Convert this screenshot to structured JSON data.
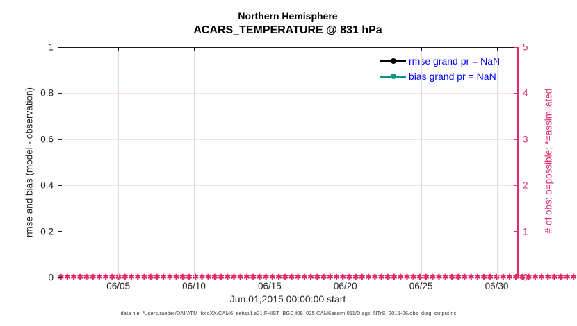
{
  "figure": {
    "title_line1": "Northern Hemisphere",
    "title_line2": "ACARS_TEMPERATURE @ 831 hPa",
    "footer": "data file: /Users/raeder/DAI/ATM_forcXX/CAM6_setup/f.e21.FHIST_BGC.f09_025.CAM6assim.011/Diags_NTrS_2015-06/obs_diag_output.nc"
  },
  "axes": {
    "left": {
      "label": "rmse and bias (model - observation)",
      "ticks": [
        "0",
        "0.2",
        "0.4",
        "0.6",
        "0.8",
        "1"
      ],
      "range": [
        0,
        1
      ]
    },
    "right": {
      "label": "# of obs: o=possible; *=assimilated",
      "ticks": [
        "0",
        "1",
        "2",
        "3",
        "4",
        "5"
      ],
      "range": [
        0,
        5
      ]
    },
    "x": {
      "label": "Jun.01,2015 00:00:00 start",
      "ticks": [
        "06/05",
        "06/10",
        "06/15",
        "06/20",
        "06/25",
        "06/30"
      ],
      "tick_days": [
        4,
        9,
        14,
        19,
        24,
        29
      ],
      "span_days": 30.4
    }
  },
  "legend": {
    "entries": [
      {
        "label": "rmse grand pr = NaN",
        "color": "#000000"
      },
      {
        "label": "bias grand pr = NaN",
        "color": "#0f9488"
      }
    ],
    "text_color": "#0000ff"
  },
  "colors": {
    "pink": "#e42a6a",
    "pink_grid": "rgba(228,42,106,0.16)",
    "gray_grid": "#dcdcdc",
    "tick_text": "#262626",
    "spine": "#1a1a1a"
  },
  "chart_data": {
    "type": "line",
    "title": "Northern Hemisphere",
    "subtitle": "ACARS_TEMPERATURE @ 831 hPa",
    "xlabel": "Jun.01,2015 00:00:00 start",
    "x_tick_labels": [
      "06/05",
      "06/10",
      "06/15",
      "06/20",
      "06/25",
      "06/30"
    ],
    "x_start": "Jun.01,2015 00:00:00",
    "left_axis": {
      "label": "rmse and bias (model - observation)",
      "ylim": [
        0,
        1
      ]
    },
    "right_axis": {
      "label": "# of obs: o=possible; *=assimilated",
      "ylim": [
        0,
        5
      ]
    },
    "grid": true,
    "legend_position": "upper-right-inside",
    "series": [
      {
        "name": "rmse grand pr = NaN",
        "axis": "left",
        "color": "#000000",
        "marker": "filled-circle",
        "values": "NaN (no curve plotted)"
      },
      {
        "name": "bias grand pr = NaN",
        "axis": "left",
        "color": "#0f9488",
        "marker": "filled-circle",
        "values": "NaN (no curve plotted)"
      },
      {
        "name": "# of obs possible",
        "axis": "right",
        "color": "#e42a6a",
        "marker": "o",
        "constant_value": 0,
        "n_points": 120
      },
      {
        "name": "# of obs assimilated",
        "axis": "right",
        "color": "#e42a6a",
        "marker": "*",
        "constant_value": 0,
        "n_points": 120
      }
    ]
  }
}
